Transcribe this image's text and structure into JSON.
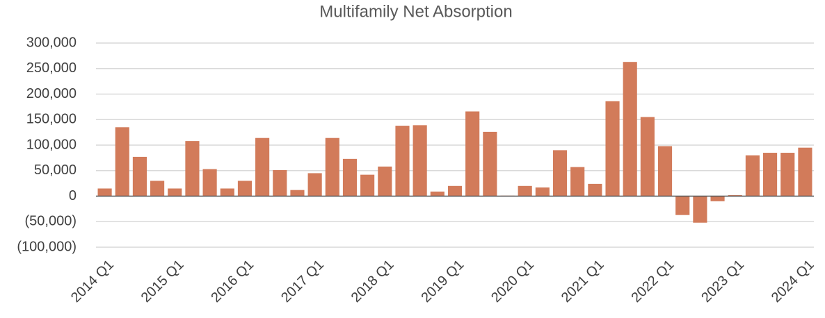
{
  "chart_data": {
    "type": "bar",
    "title": "Multifamily Net Absorption",
    "categories": [
      "2014 Q1",
      null,
      null,
      null,
      "2015 Q1",
      null,
      null,
      null,
      "2016 Q1",
      null,
      null,
      null,
      "2017 Q1",
      null,
      null,
      null,
      "2018 Q1",
      null,
      null,
      null,
      "2019 Q1",
      null,
      null,
      null,
      "2020 Q1",
      null,
      null,
      null,
      "2021 Q1",
      null,
      null,
      null,
      "2022 Q1",
      null,
      null,
      null,
      "2023 Q1",
      null,
      null,
      null,
      "2024 Q1"
    ],
    "values": [
      15000,
      135000,
      77000,
      30000,
      15000,
      108000,
      53000,
      15000,
      30000,
      114000,
      51000,
      12000,
      45000,
      114000,
      73000,
      42000,
      58000,
      138000,
      139000,
      9000,
      20000,
      166000,
      126000,
      1000,
      20000,
      17000,
      90000,
      57000,
      24000,
      186000,
      263000,
      155000,
      98000,
      -37000,
      -52000,
      -10000,
      2000,
      80000,
      85000,
      85000,
      95000
    ],
    "color": "#d27b5a",
    "ylim": [
      -100000,
      300000
    ],
    "yticks": [
      {
        "value": -100000,
        "label": "(100,000)"
      },
      {
        "value": -50000,
        "label": "(50,000)"
      },
      0,
      {
        "value": 50000,
        "label": "50,000"
      },
      {
        "value": 100000,
        "label": "100,000"
      },
      {
        "value": 150000,
        "label": "150,000"
      },
      {
        "value": 200000,
        "label": "200,000"
      },
      {
        "value": 250000,
        "label": "250,000"
      },
      {
        "value": 300000,
        "label": "300,000"
      }
    ],
    "grid": true
  }
}
